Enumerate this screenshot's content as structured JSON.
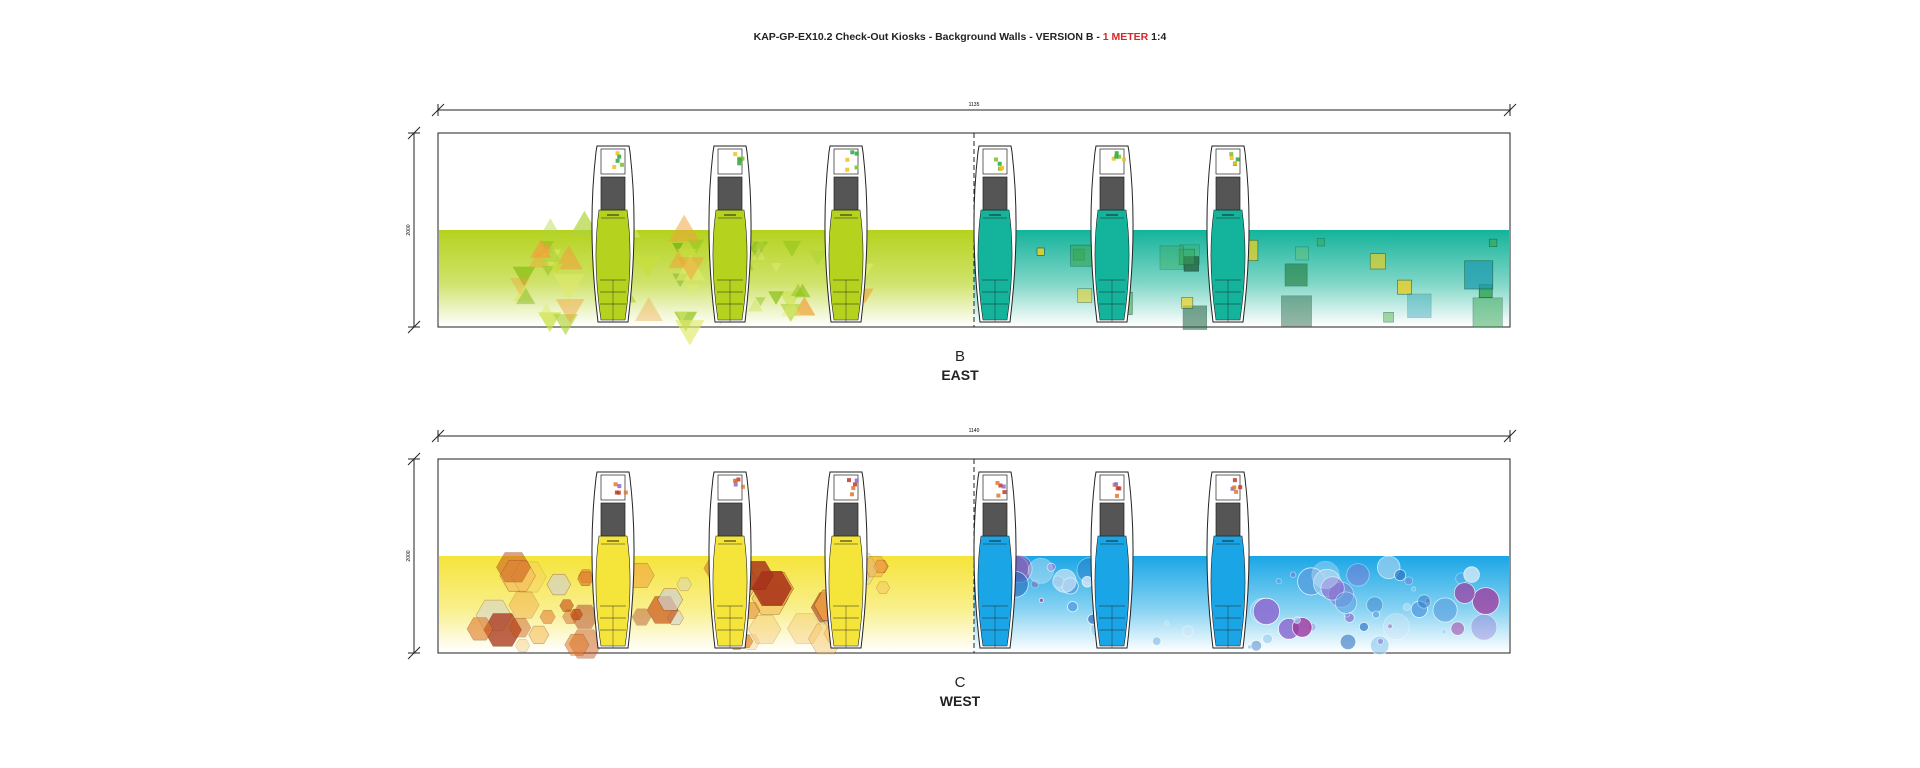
{
  "title": {
    "prefix": "KAP-GP-EX10.2 Check-Out Kiosks - Background Walls - VERSION B - ",
    "highlight": "1 METER",
    "suffix": " 1:4"
  },
  "colors": {
    "lime": "#b5d21e",
    "teal": "#14b39b",
    "yellow": "#f5e43a",
    "cyan": "#1aa6e6",
    "screen": "#555555",
    "outline": "#222222",
    "accent_red": "#d62828"
  },
  "walls": [
    {
      "id": "east",
      "letter": "B",
      "direction": "EAST",
      "width_dim": "1135",
      "height_dim": "2000",
      "left_theme": "green-triangles",
      "right_theme": "teal-squares",
      "kiosk_count": 6
    },
    {
      "id": "west",
      "letter": "C",
      "direction": "WEST",
      "width_dim": "1140",
      "height_dim": "2000",
      "left_theme": "orange-hexagons",
      "right_theme": "blue-circles",
      "kiosk_count": 6
    }
  ]
}
